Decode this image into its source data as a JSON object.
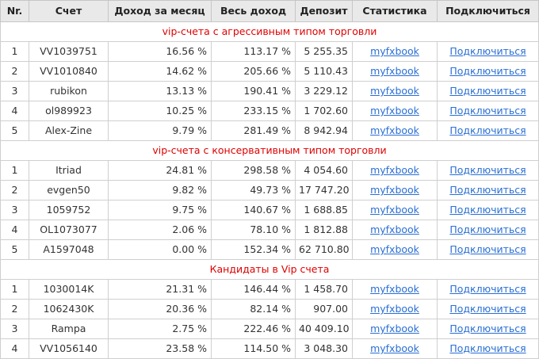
{
  "colors": {
    "header_bg": "#e9e9e9",
    "section_text": "#e00000",
    "link": "#2a6fd4",
    "border": "#cfcfcf"
  },
  "headers": [
    "Nr.",
    "Счет",
    "Доход за месяц",
    "Весь доход",
    "Депозит",
    "Статистика",
    "Подключиться"
  ],
  "sections": [
    {
      "title": "vip-счета с агрессивным типом торговли",
      "rows": [
        {
          "nr": "1",
          "account": "VV1039751",
          "monthly": "16.56 %",
          "total": "113.17 %",
          "deposit": "5 255.35",
          "stats": "myfxbook",
          "connect": "Подключиться"
        },
        {
          "nr": "2",
          "account": "VV1010840",
          "monthly": "14.62 %",
          "total": "205.66 %",
          "deposit": "5 110.43",
          "stats": "myfxbook",
          "connect": "Подключиться"
        },
        {
          "nr": "3",
          "account": "rubikon",
          "monthly": "13.13 %",
          "total": "190.41 %",
          "deposit": "3 229.12",
          "stats": "myfxbook",
          "connect": "Подключиться"
        },
        {
          "nr": "4",
          "account": "ol989923",
          "monthly": "10.25 %",
          "total": "233.15 %",
          "deposit": "1 702.60",
          "stats": "myfxbook",
          "connect": "Подключиться"
        },
        {
          "nr": "5",
          "account": "Alex-Zine",
          "monthly": "9.79 %",
          "total": "281.49 %",
          "deposit": "8 942.94",
          "stats": "myfxbook",
          "connect": "Подключиться"
        }
      ]
    },
    {
      "title": "vip-счета с консервативным типом торговли",
      "rows": [
        {
          "nr": "1",
          "account": "Itriad",
          "monthly": "24.81 %",
          "total": "298.58 %",
          "deposit": "4 054.60",
          "stats": "myfxbook",
          "connect": "Подключиться"
        },
        {
          "nr": "2",
          "account": "evgen50",
          "monthly": "9.82 %",
          "total": "49.73 %",
          "deposit": "17 747.20",
          "stats": "myfxbook",
          "connect": "Подключиться"
        },
        {
          "nr": "3",
          "account": "1059752",
          "monthly": "9.75 %",
          "total": "140.67 %",
          "deposit": "1 688.85",
          "stats": "myfxbook",
          "connect": "Подключиться"
        },
        {
          "nr": "4",
          "account": "OL1073077",
          "monthly": "2.06 %",
          "total": "78.10 %",
          "deposit": "1 812.88",
          "stats": "myfxbook",
          "connect": "Подключиться"
        },
        {
          "nr": "5",
          "account": "A1597048",
          "monthly": "0.00 %",
          "total": "152.34 %",
          "deposit": "62 710.80",
          "stats": "myfxbook",
          "connect": "Подключиться"
        }
      ]
    },
    {
      "title": "Кандидаты в Vip счета",
      "rows": [
        {
          "nr": "1",
          "account": "1030014K",
          "monthly": "21.31 %",
          "total": "146.44 %",
          "deposit": "1 458.70",
          "stats": "myfxbook",
          "connect": "Подключиться"
        },
        {
          "nr": "2",
          "account": "1062430K",
          "monthly": "20.36 %",
          "total": "82.14 %",
          "deposit": "907.00",
          "stats": "myfxbook",
          "connect": "Подключиться"
        },
        {
          "nr": "3",
          "account": "Rampa",
          "monthly": "2.75 %",
          "total": "222.46 %",
          "deposit": "40 409.10",
          "stats": "myfxbook",
          "connect": "Подключиться"
        },
        {
          "nr": "4",
          "account": "VV1056140",
          "monthly": "23.58 %",
          "total": "114.50 %",
          "deposit": "3 048.30",
          "stats": "myfxbook",
          "connect": "Подключиться"
        }
      ]
    }
  ]
}
